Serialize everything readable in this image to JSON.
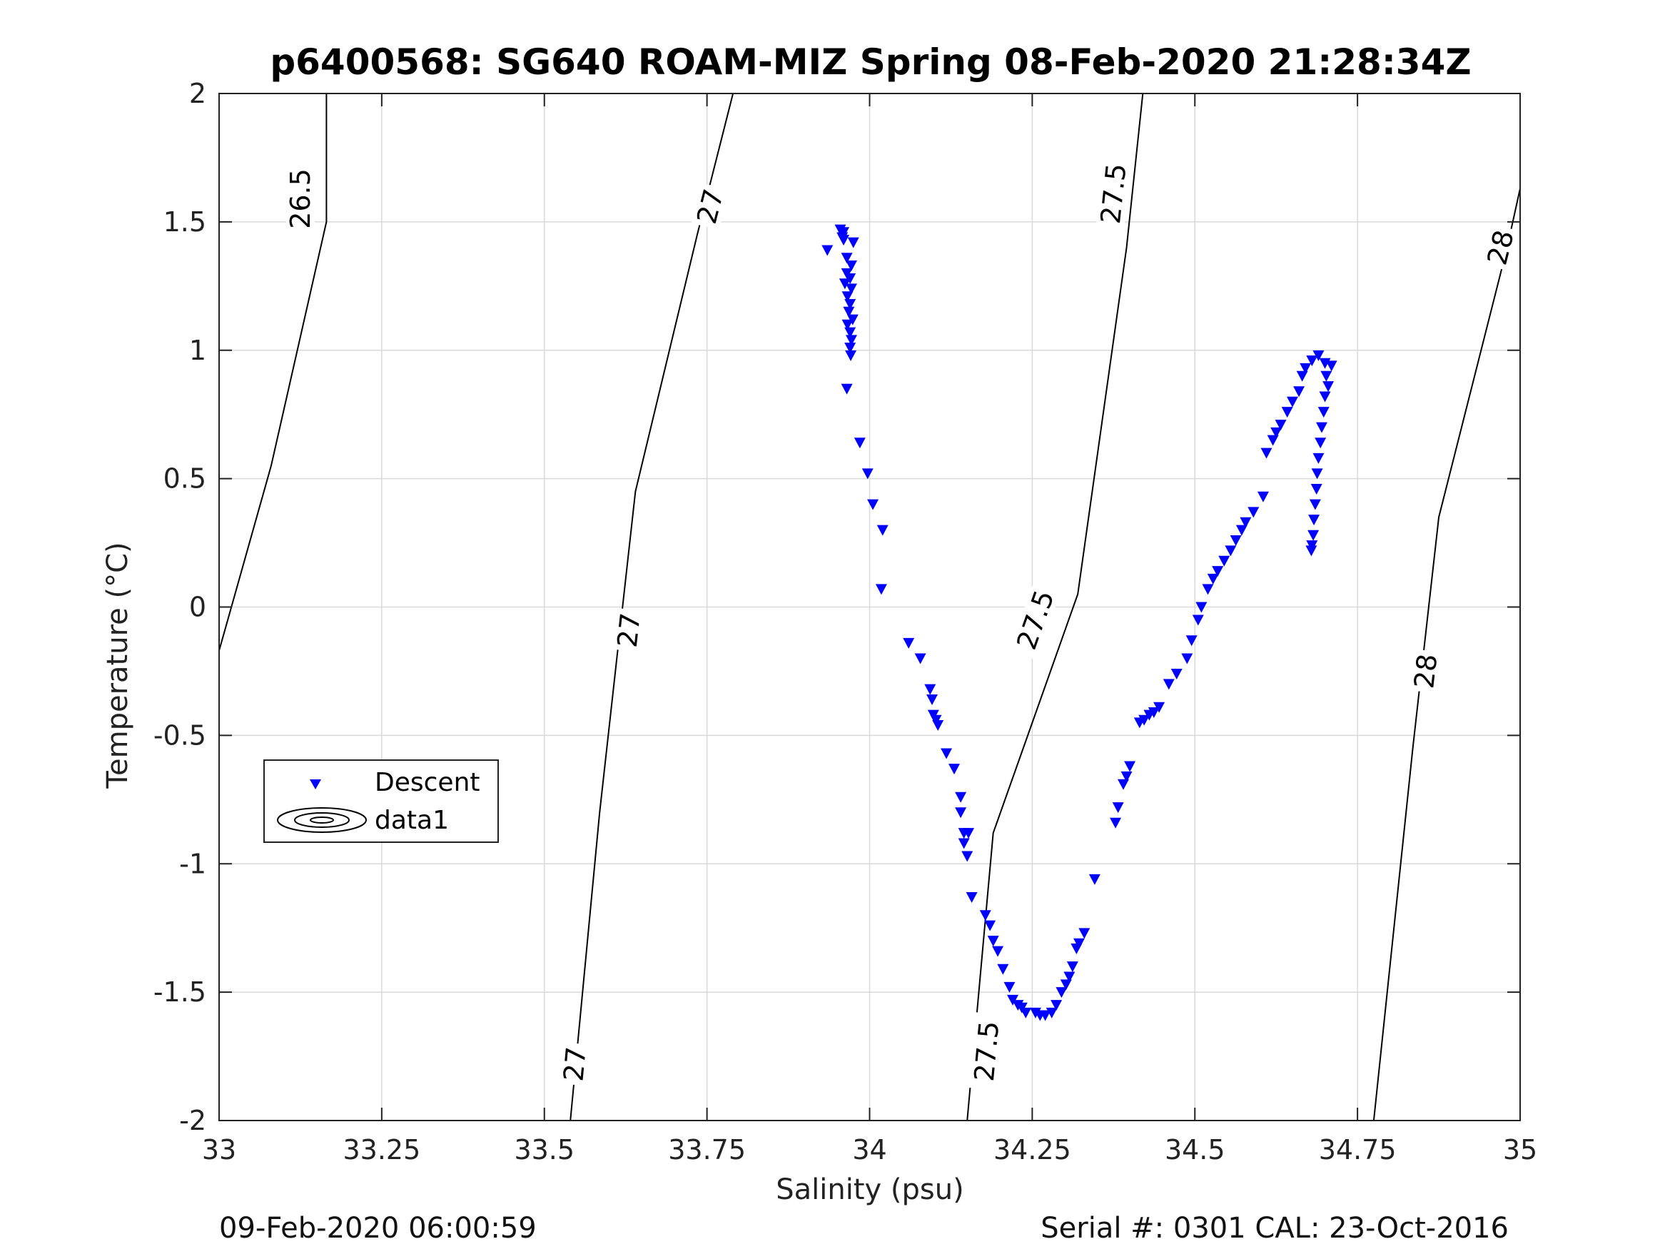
{
  "chart_data": {
    "type": "scatter",
    "title": "p6400568: SG640 ROAM-MIZ Spring 08-Feb-2020 21:28:34Z",
    "xlabel": "Salinity (psu)",
    "ylabel": "Temperature (°C)",
    "xlim": [
      33,
      35
    ],
    "ylim": [
      -2,
      2
    ],
    "grid": true,
    "xticks": [
      33,
      33.25,
      33.5,
      33.75,
      34,
      34.25,
      34.5,
      34.75,
      35
    ],
    "xtick_labels": [
      "33",
      "33.25",
      "33.5",
      "33.75",
      "34",
      "34.25",
      "34.5",
      "34.75",
      "35"
    ],
    "yticks": [
      -2,
      -1.5,
      -1,
      -0.5,
      0,
      0.5,
      1,
      1.5,
      2
    ],
    "ytick_labels": [
      "-2",
      "-1.5",
      "-1",
      "-0.5",
      "0",
      "0.5",
      "1",
      "1.5",
      "2"
    ],
    "legend": {
      "placement": "lower-left",
      "entries": [
        "Descent",
        "data1"
      ]
    },
    "series": [
      {
        "name": "Descent",
        "marker": "triangle-down",
        "color": "#0000ff",
        "points": [
          [
            33.935,
            1.39
          ],
          [
            33.955,
            1.47
          ],
          [
            33.96,
            1.46
          ],
          [
            33.958,
            1.44
          ],
          [
            33.96,
            1.43
          ],
          [
            33.975,
            1.42
          ],
          [
            33.965,
            1.36
          ],
          [
            33.972,
            1.33
          ],
          [
            33.965,
            1.3
          ],
          [
            33.97,
            1.28
          ],
          [
            33.962,
            1.26
          ],
          [
            33.972,
            1.24
          ],
          [
            33.966,
            1.21
          ],
          [
            33.97,
            1.18
          ],
          [
            33.968,
            1.15
          ],
          [
            33.974,
            1.12
          ],
          [
            33.966,
            1.1
          ],
          [
            33.97,
            1.07
          ],
          [
            33.972,
            1.04
          ],
          [
            33.97,
            1.01
          ],
          [
            33.971,
            0.98
          ],
          [
            33.965,
            0.85
          ],
          [
            33.985,
            0.64
          ],
          [
            33.997,
            0.52
          ],
          [
            34.005,
            0.4
          ],
          [
            34.02,
            0.3
          ],
          [
            34.018,
            0.07
          ],
          [
            34.06,
            -0.14
          ],
          [
            34.078,
            -0.2
          ],
          [
            34.093,
            -0.32
          ],
          [
            34.096,
            -0.36
          ],
          [
            34.098,
            -0.42
          ],
          [
            34.102,
            -0.44
          ],
          [
            34.105,
            -0.46
          ],
          [
            34.118,
            -0.57
          ],
          [
            34.13,
            -0.63
          ],
          [
            34.14,
            -0.74
          ],
          [
            34.14,
            -0.8
          ],
          [
            34.145,
            -0.88
          ],
          [
            34.152,
            -0.88
          ],
          [
            34.145,
            -0.92
          ],
          [
            34.15,
            -0.97
          ],
          [
            34.157,
            -1.13
          ],
          [
            34.178,
            -1.2
          ],
          [
            34.185,
            -1.24
          ],
          [
            34.19,
            -1.3
          ],
          [
            34.197,
            -1.34
          ],
          [
            34.205,
            -1.41
          ],
          [
            34.215,
            -1.48
          ],
          [
            34.22,
            -1.53
          ],
          [
            34.228,
            -1.55
          ],
          [
            34.234,
            -1.56
          ],
          [
            34.24,
            -1.58
          ],
          [
            34.255,
            -1.58
          ],
          [
            34.262,
            -1.59
          ],
          [
            34.27,
            -1.59
          ],
          [
            34.28,
            -1.58
          ],
          [
            34.287,
            -1.55
          ],
          [
            34.295,
            -1.5
          ],
          [
            34.302,
            -1.47
          ],
          [
            34.307,
            -1.44
          ],
          [
            34.312,
            -1.4
          ],
          [
            34.318,
            -1.33
          ],
          [
            34.322,
            -1.31
          ],
          [
            34.33,
            -1.27
          ],
          [
            34.346,
            -1.06
          ],
          [
            34.378,
            -0.84
          ],
          [
            34.382,
            -0.78
          ],
          [
            34.39,
            -0.69
          ],
          [
            34.395,
            -0.66
          ],
          [
            34.4,
            -0.62
          ],
          [
            34.415,
            -0.45
          ],
          [
            34.422,
            -0.44
          ],
          [
            34.43,
            -0.42
          ],
          [
            34.437,
            -0.41
          ],
          [
            34.445,
            -0.39
          ],
          [
            34.46,
            -0.3
          ],
          [
            34.472,
            -0.26
          ],
          [
            34.488,
            -0.2
          ],
          [
            34.495,
            -0.13
          ],
          [
            34.505,
            -0.05
          ],
          [
            34.51,
            0.0
          ],
          [
            34.52,
            0.07
          ],
          [
            34.528,
            0.11
          ],
          [
            34.535,
            0.14
          ],
          [
            34.545,
            0.18
          ],
          [
            34.555,
            0.22
          ],
          [
            34.563,
            0.26
          ],
          [
            34.572,
            0.3
          ],
          [
            34.578,
            0.33
          ],
          [
            34.59,
            0.37
          ],
          [
            34.605,
            0.43
          ],
          [
            34.61,
            0.6
          ],
          [
            34.62,
            0.65
          ],
          [
            34.625,
            0.68
          ],
          [
            34.632,
            0.71
          ],
          [
            34.642,
            0.76
          ],
          [
            34.65,
            0.8
          ],
          [
            34.66,
            0.84
          ],
          [
            34.665,
            0.9
          ],
          [
            34.67,
            0.93
          ],
          [
            34.68,
            0.96
          ],
          [
            34.69,
            0.98
          ],
          [
            34.7,
            0.95
          ],
          [
            34.71,
            0.94
          ],
          [
            34.702,
            0.9
          ],
          [
            34.705,
            0.86
          ],
          [
            34.7,
            0.82
          ],
          [
            34.698,
            0.76
          ],
          [
            34.695,
            0.7
          ],
          [
            34.693,
            0.64
          ],
          [
            34.69,
            0.58
          ],
          [
            34.688,
            0.52
          ],
          [
            34.687,
            0.46
          ],
          [
            34.685,
            0.4
          ],
          [
            34.683,
            0.34
          ],
          [
            34.682,
            0.28
          ],
          [
            34.68,
            0.24
          ],
          [
            34.679,
            0.22
          ]
        ]
      }
    ],
    "contours": [
      {
        "level": 26.5,
        "label": "26.5",
        "points": [
          [
            33.0,
            -0.17
          ],
          [
            33.08,
            0.55
          ],
          [
            33.165,
            1.5
          ],
          [
            33.165,
            2.0
          ]
        ],
        "label_positions": [
          [
            33.125,
            1.59
          ]
        ]
      },
      {
        "level": 27,
        "label": "27",
        "points": [
          [
            33.54,
            -2.0
          ],
          [
            33.585,
            -0.8
          ],
          [
            33.64,
            0.45
          ],
          [
            33.735,
            1.45
          ],
          [
            33.79,
            2.0
          ]
        ],
        "label_positions": [
          [
            33.547,
            -1.78
          ],
          [
            33.63,
            -0.09
          ],
          [
            33.755,
            1.56
          ]
        ]
      },
      {
        "level": 27.5,
        "label": "27.5",
        "points": [
          [
            34.15,
            -2.0
          ],
          [
            34.19,
            -0.88
          ],
          [
            34.32,
            0.05
          ],
          [
            34.395,
            1.4
          ],
          [
            34.42,
            2.0
          ]
        ],
        "label_positions": [
          [
            34.18,
            -1.73
          ],
          [
            34.255,
            -0.05
          ],
          [
            34.375,
            1.61
          ]
        ]
      },
      {
        "level": 28,
        "label": "28",
        "points": [
          [
            34.775,
            -2.0
          ],
          [
            34.835,
            -0.55
          ],
          [
            34.875,
            0.35
          ],
          [
            34.98,
            1.4
          ],
          [
            35.0,
            1.63
          ]
        ],
        "label_positions": [
          [
            34.855,
            -0.25
          ],
          [
            34.97,
            1.4
          ]
        ]
      }
    ]
  },
  "footer": {
    "left": "09-Feb-2020 06:00:59",
    "right": "Serial #: 0301  CAL: 23-Oct-2016"
  }
}
